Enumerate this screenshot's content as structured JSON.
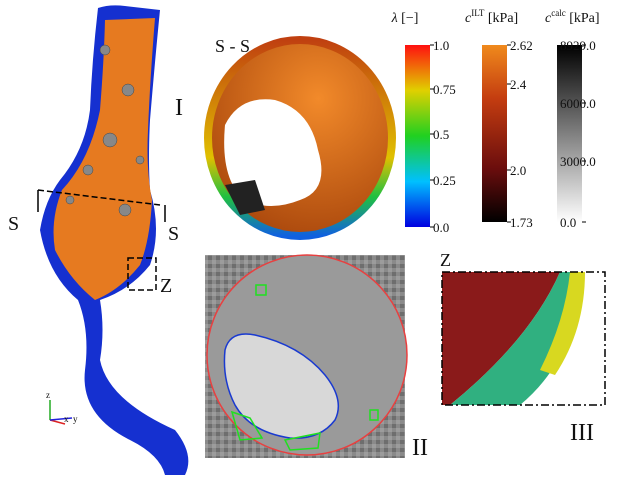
{
  "panels": {
    "first": "I",
    "second": "II",
    "third": "III"
  },
  "section": {
    "title": "S - S",
    "left": "S",
    "right": "S"
  },
  "zoom": {
    "marker": "Z",
    "title": "Z"
  },
  "axes": {
    "z": "z",
    "x": "x",
    "y": "y"
  },
  "colorbars": [
    {
      "symbol": "λ",
      "unit": " [−]",
      "ticks": [
        "1.0",
        "0.75",
        "0.5",
        "0.25",
        "0.0"
      ]
    },
    {
      "symbol": "c",
      "sup": "ILT",
      "unit": " [kPa]",
      "ticks": [
        "2.62",
        "2.4",
        "2.0",
        "1.73"
      ]
    },
    {
      "symbol": "c",
      "sup": "calc",
      "unit": " [kPa]",
      "ticks": [
        "8929.0",
        "6000.0",
        "3000.0",
        "0.0"
      ]
    }
  ]
}
